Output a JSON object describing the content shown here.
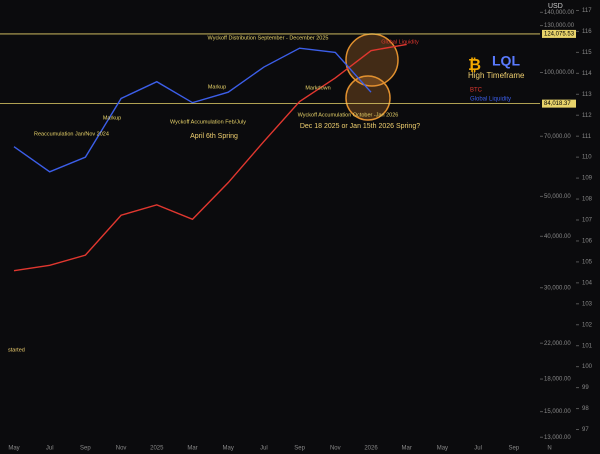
{
  "chart_data": {
    "type": "line",
    "currency": "USD",
    "log_scale": true,
    "categories": [
      "May",
      "Jul",
      "Sep",
      "Nov",
      "2025",
      "Mar",
      "May",
      "Jul",
      "Sep",
      "Nov",
      "2026",
      "Mar",
      "May",
      "Jul",
      "Sep",
      "N"
    ],
    "series": [
      {
        "name": "BTC",
        "color": "#e0372f",
        "values": [
          33000,
          34000,
          36000,
          45000,
          47700,
          44000,
          54000,
          68000,
          85000,
          97000,
          113000,
          117000,
          null,
          null,
          null,
          null
        ]
      },
      {
        "name": "Global Liquidity",
        "color": "#3c5ee8",
        "axis": "y2",
        "values": [
          110.5,
          109.3,
          110,
          112.8,
          113.6,
          112.6,
          113.1,
          114.3,
          115.2,
          115,
          113.1,
          null,
          null,
          null,
          null,
          null
        ]
      }
    ],
    "ylim": [
      12800,
      150000
    ],
    "yticks": [
      {
        "value": 140000,
        "label": "140,000.00"
      },
      {
        "value": 130000,
        "label": "130,000.00"
      },
      {
        "value": 100000,
        "label": "100,000.00"
      },
      {
        "value": 70000,
        "label": "70,000.00"
      },
      {
        "value": 50000,
        "label": "50,000.00"
      },
      {
        "value": 40000,
        "label": "40,000.00"
      },
      {
        "value": 30000,
        "label": "30,000.00"
      },
      {
        "value": 22000,
        "label": "22,000.00"
      },
      {
        "value": 18000,
        "label": "18,000.00"
      },
      {
        "value": 15000,
        "label": "15,000.00"
      },
      {
        "value": 13000,
        "label": "13,000.00"
      }
    ],
    "y2lim": [
      96.5,
      117.5
    ],
    "y2ticks": [
      97,
      98,
      99,
      100,
      101,
      102,
      103,
      104,
      105,
      106,
      107,
      108,
      109,
      110,
      111,
      112,
      113,
      114,
      115,
      116,
      117
    ],
    "levels": [
      {
        "value": 124075.53,
        "label": "124,075.53",
        "color": "#e8d36a"
      },
      {
        "value": 84018.37,
        "label": "84,018.37",
        "color": "#e8d36a"
      }
    ],
    "annotations": [
      "Wyckoff Distribution September - December 2025",
      "Markup",
      "Markup",
      "Wyckoff Accumulation Feb/July",
      "April 6th Spring",
      "Markdown",
      "Wyckoff Accumulation October -Jan 2026",
      "Dec 18 2025 or Jan 15th 2026 Spring?",
      "Reaccumulation Jan/Nov 2024",
      "Global Liquidity",
      "started"
    ],
    "logo": "LQL",
    "logo_subtitle": "High Timeframe"
  }
}
